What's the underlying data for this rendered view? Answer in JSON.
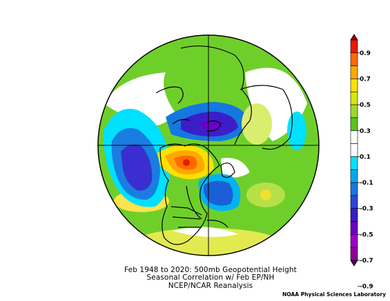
{
  "title_line1": "Feb 1948 to 2020: 500mb Geopotential Height",
  "title_line2": "Seasonal Correlation w/ Feb EP/NH",
  "dataset": "NCEP/NCAR Reanalysis",
  "credit": "NOAA Physical Sciences Laboratory",
  "map": {
    "projection": "north-polar-stereographic",
    "field": "correlation",
    "center_lat": 90,
    "outer_lat": 0
  },
  "colorbar": {
    "labels": [
      "0.9",
      "0.7",
      "0.5",
      "0.3",
      "0.1",
      "-0.1",
      "-0.3",
      "-0.5",
      "-0.7",
      "-0.9"
    ],
    "colors": [
      "#a50000",
      "#e81a00",
      "#ff6a00",
      "#ffa800",
      "#ffe000",
      "#d9e600",
      "#9ed82a",
      "#57c51a",
      "#ffffff",
      "#ffffff",
      "#00e2ff",
      "#00a8f0",
      "#1478e0",
      "#2e46d6",
      "#3c1ec8",
      "#6a00c8",
      "#a000c8",
      "#8e0096",
      "#4e0060"
    ]
  }
}
